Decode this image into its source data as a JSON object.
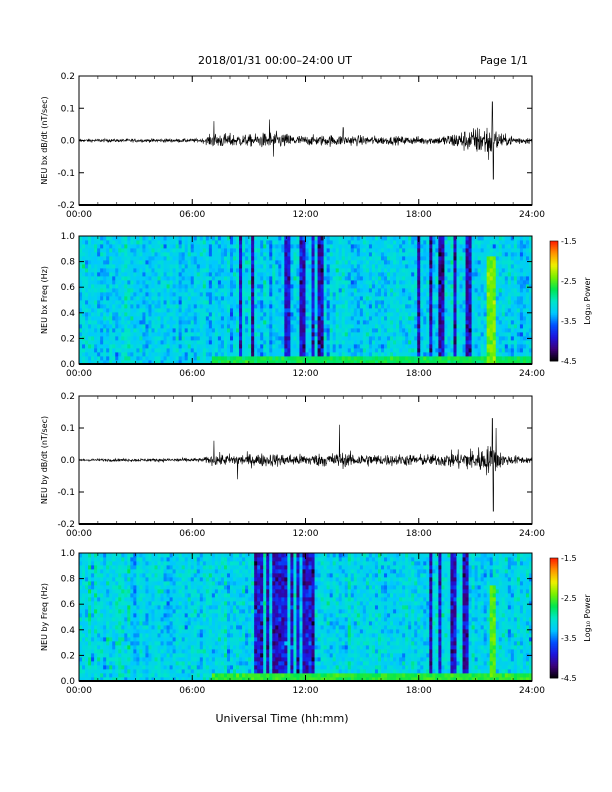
{
  "header": {
    "title": "2018/01/31  00:00–24:00 UT",
    "page": "Page 1/1"
  },
  "footer": {
    "xlabel": "Universal Time (hh:mm)"
  },
  "colorbar": {
    "label": "Log₁₀ Power",
    "ticks": [
      "-1.5",
      "-2.5",
      "-3.5",
      "-4.5"
    ],
    "range": [
      -4.5,
      -1.5
    ],
    "colormap": [
      "#000000",
      "#3c0078",
      "#1e14dc",
      "#0050ff",
      "#00c8ff",
      "#00e6c8",
      "#00e650",
      "#78f000",
      "#f0f000",
      "#ff9600",
      "#ff1e00"
    ]
  },
  "chart_data": [
    {
      "type": "line",
      "ylabel": "NEU bx dB/dt (nT/sec)",
      "xlim": [
        0,
        24
      ],
      "x_ticks": [
        "00:00",
        "06:00",
        "12:00",
        "18:00",
        "24:00"
      ],
      "ylim": [
        -0.2,
        0.2
      ],
      "y_ticks": [
        "0.2",
        "0.1",
        "0.0",
        "-0.1",
        "-0.2"
      ],
      "series_color": "#000000",
      "activity_profile": [
        {
          "t": 0,
          "amp": 0.008
        },
        {
          "t": 6.5,
          "amp": 0.01
        },
        {
          "t": 7.2,
          "amp": 0.04
        },
        {
          "t": 9,
          "amp": 0.03
        },
        {
          "t": 10.2,
          "amp": 0.045
        },
        {
          "t": 12,
          "amp": 0.025
        },
        {
          "t": 13.5,
          "amp": 0.03
        },
        {
          "t": 16,
          "amp": 0.022
        },
        {
          "t": 19,
          "amp": 0.02
        },
        {
          "t": 21.8,
          "amp": 0.09
        },
        {
          "t": 22.5,
          "amp": 0.03
        },
        {
          "t": 24,
          "amp": 0.015
        }
      ],
      "peaks": [
        {
          "t": 7.15,
          "v": 0.06
        },
        {
          "t": 10.1,
          "v": 0.065
        },
        {
          "t": 10.3,
          "v": -0.05
        },
        {
          "t": 14,
          "v": 0.04
        },
        {
          "t": 21.9,
          "v": 0.12
        },
        {
          "t": 21.95,
          "v": -0.12
        },
        {
          "t": 21.7,
          "v": -0.06
        }
      ]
    },
    {
      "type": "heatmap",
      "ylabel": "NEU bx Freq (Hz)",
      "xlim": [
        0,
        24
      ],
      "x_ticks": [
        "00:00",
        "06:00",
        "12:00",
        "18:00",
        "24:00"
      ],
      "ylim": [
        0,
        1.0
      ],
      "y_ticks": [
        "1.0",
        "0.8",
        "0.6",
        "0.4",
        "0.2",
        "0.0"
      ],
      "zlim": [
        -4.5,
        -1.5
      ],
      "background_level": -3.2,
      "low_freq_enhancement": [
        {
          "f_max": 0.06,
          "level": -2.7
        }
      ],
      "vertical_streaks_dark": [
        8.6,
        9.2,
        11.0,
        11.8,
        12.4,
        12.8,
        18.0,
        18.6,
        19.2,
        19.9,
        20.6
      ],
      "bright_burst": {
        "t_start": 21.6,
        "t_end": 22.0,
        "f_max": 0.85,
        "level": -2.4
      }
    },
    {
      "type": "line",
      "ylabel": "NEU by dB/dt (nT/sec)",
      "xlim": [
        0,
        24
      ],
      "x_ticks": [
        "00:00",
        "06:00",
        "12:00",
        "18:00",
        "24:00"
      ],
      "ylim": [
        -0.2,
        0.2
      ],
      "y_ticks": [
        "0.2",
        "0.1",
        "0.0",
        "-0.1",
        "-0.2"
      ],
      "series_color": "#000000",
      "activity_profile": [
        {
          "t": 0,
          "amp": 0.006
        },
        {
          "t": 6.5,
          "amp": 0.01
        },
        {
          "t": 7.2,
          "amp": 0.03
        },
        {
          "t": 10,
          "amp": 0.035
        },
        {
          "t": 12,
          "amp": 0.03
        },
        {
          "t": 13.7,
          "amp": 0.04
        },
        {
          "t": 16,
          "amp": 0.03
        },
        {
          "t": 19,
          "amp": 0.03
        },
        {
          "t": 21.9,
          "amp": 0.08
        },
        {
          "t": 22.5,
          "amp": 0.03
        },
        {
          "t": 24,
          "amp": 0.015
        }
      ],
      "peaks": [
        {
          "t": 7.15,
          "v": 0.06
        },
        {
          "t": 8.4,
          "v": -0.06
        },
        {
          "t": 13.8,
          "v": 0.11
        },
        {
          "t": 21.9,
          "v": 0.13
        },
        {
          "t": 21.95,
          "v": -0.16
        },
        {
          "t": 22.1,
          "v": 0.1
        }
      ]
    },
    {
      "type": "heatmap",
      "ylabel": "NEU by Freq (Hz)",
      "xlim": [
        0,
        24
      ],
      "x_ticks": [
        "00:00",
        "06:00",
        "12:00",
        "18:00",
        "24:00"
      ],
      "ylim": [
        0,
        1.0
      ],
      "y_ticks": [
        "1.0",
        "0.8",
        "0.6",
        "0.4",
        "0.2",
        "0.0"
      ],
      "zlim": [
        -4.5,
        -1.5
      ],
      "background_level": -3.15,
      "low_freq_enhancement": [
        {
          "f_max": 0.05,
          "level": -2.6
        }
      ],
      "vertical_streaks_dark": [
        9.4,
        9.7,
        10.0,
        10.3,
        10.6,
        10.9,
        11.3,
        11.6,
        12.0,
        12.3,
        18.6,
        19.1,
        19.8,
        20.5
      ],
      "bright_burst": {
        "t_start": 21.8,
        "t_end": 22.1,
        "f_max": 0.75,
        "level": -2.5
      }
    }
  ]
}
